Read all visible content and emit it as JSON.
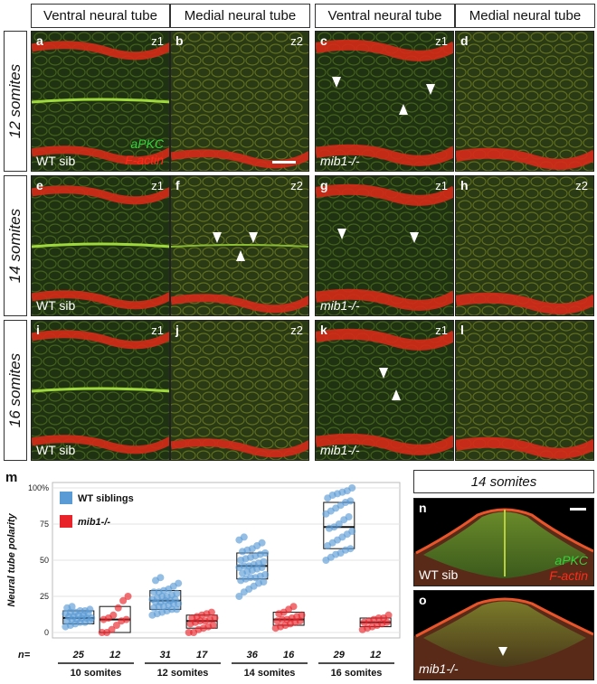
{
  "column_headers": [
    "Ventral neural tube",
    "Medial neural tube",
    "Ventral neural tube",
    "Medial neural tube"
  ],
  "row_labels": [
    "12 somites",
    "14 somites",
    "16 somites"
  ],
  "micrographs": [
    {
      "letter": "a",
      "z": "z1",
      "genotype": "WT sib",
      "stain1": "aPKC",
      "stain2": "F-actin"
    },
    {
      "letter": "b",
      "z": "z2"
    },
    {
      "letter": "c",
      "z": "z1",
      "genotype": "mib1-/-"
    },
    {
      "letter": "d",
      "z": ""
    },
    {
      "letter": "e",
      "z": "z1",
      "genotype": "WT sib"
    },
    {
      "letter": "f",
      "z": "z2"
    },
    {
      "letter": "g",
      "z": "z1",
      "genotype": "mib1-/-"
    },
    {
      "letter": "h",
      "z": "z2"
    },
    {
      "letter": "i",
      "z": "z1",
      "genotype": "WT sib"
    },
    {
      "letter": "j",
      "z": "z2"
    },
    {
      "letter": "k",
      "z": "z1",
      "genotype": "mib1-/-"
    },
    {
      "letter": "l",
      "z": ""
    }
  ],
  "panel_m": {
    "letter": "m"
  },
  "side_panel": {
    "title": "14 somites",
    "n": {
      "letter": "n",
      "genotype": "WT sib",
      "stain1": "aPKC",
      "stain2": "F-actin"
    },
    "o": {
      "letter": "o",
      "genotype": "mib1-/-"
    }
  },
  "chart_data": {
    "type": "scatter",
    "ylabel": "Neural tube polarity",
    "ylim": [
      0,
      100
    ],
    "yticks": [
      "0",
      "25",
      "50",
      "75",
      "100%"
    ],
    "legend": [
      {
        "name": "WT siblings",
        "color": "#5b9bd5"
      },
      {
        "name": "mib1-/-",
        "color": "#e8232a"
      }
    ],
    "legend_position": "top-left",
    "grid": true,
    "n_prefix": "n=",
    "groups": [
      {
        "stage": "10 somites",
        "series": "WT siblings",
        "n": "25",
        "median": 10,
        "q1": 6,
        "q3": 15,
        "points": [
          4,
          5,
          6,
          7,
          7,
          8,
          8,
          9,
          9,
          10,
          10,
          10,
          11,
          11,
          12,
          12,
          13,
          13,
          14,
          14,
          15,
          15,
          16,
          17,
          18
        ]
      },
      {
        "stage": "10 somites",
        "series": "mib1-/-",
        "n": "12",
        "median": 9,
        "q1": 0,
        "q3": 18,
        "points": [
          0,
          0,
          2,
          5,
          8,
          9,
          9,
          10,
          12,
          17,
          22,
          25
        ]
      },
      {
        "stage": "12 somites",
        "series": "WT siblings",
        "n": "31",
        "median": 22,
        "q1": 16,
        "q3": 29,
        "points": [
          12,
          13,
          14,
          15,
          16,
          16,
          17,
          18,
          18,
          19,
          20,
          20,
          21,
          21,
          22,
          22,
          23,
          23,
          24,
          25,
          25,
          26,
          27,
          28,
          28,
          29,
          30,
          32,
          34,
          36,
          38
        ]
      },
      {
        "stage": "12 somites",
        "series": "mib1-/-",
        "n": "17",
        "median": 8,
        "q1": 3,
        "q3": 12,
        "points": [
          0,
          0,
          2,
          3,
          4,
          5,
          6,
          7,
          8,
          8,
          9,
          10,
          10,
          11,
          12,
          13,
          14
        ]
      },
      {
        "stage": "14 somites",
        "series": "WT siblings",
        "n": "36",
        "median": 46,
        "q1": 37,
        "q3": 55,
        "points": [
          25,
          28,
          30,
          32,
          34,
          35,
          36,
          37,
          38,
          38,
          39,
          40,
          41,
          42,
          43,
          44,
          45,
          45,
          46,
          46,
          47,
          48,
          49,
          50,
          51,
          52,
          53,
          54,
          55,
          56,
          57,
          58,
          60,
          62,
          64,
          66
        ]
      },
      {
        "stage": "14 somites",
        "series": "mib1-/-",
        "n": "16",
        "median": 9,
        "q1": 5,
        "q3": 14,
        "points": [
          3,
          4,
          5,
          6,
          7,
          8,
          8,
          9,
          9,
          10,
          11,
          12,
          13,
          14,
          16,
          18
        ]
      },
      {
        "stage": "16 somites",
        "series": "WT siblings",
        "n": "29",
        "median": 73,
        "q1": 58,
        "q3": 90,
        "points": [
          50,
          52,
          54,
          55,
          57,
          58,
          60,
          62,
          64,
          66,
          68,
          70,
          72,
          73,
          75,
          78,
          80,
          82,
          84,
          86,
          88,
          90,
          91,
          93,
          95,
          96,
          97,
          98,
          100
        ]
      },
      {
        "stage": "16 somites",
        "series": "mib1-/-",
        "n": "12",
        "median": 7,
        "q1": 4,
        "q3": 10,
        "points": [
          2,
          3,
          4,
          5,
          6,
          7,
          7,
          8,
          9,
          10,
          10,
          12
        ]
      }
    ]
  }
}
